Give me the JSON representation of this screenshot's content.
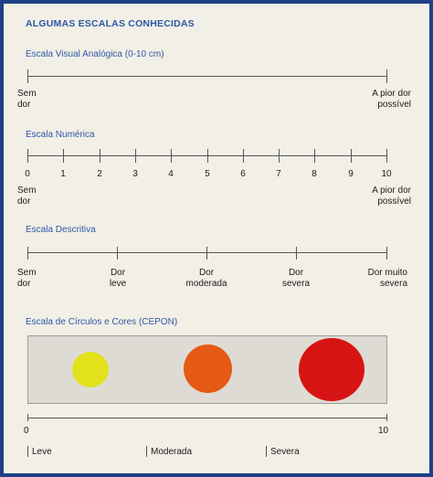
{
  "title": "ALGUMAS ESCALAS CONHECIDAS",
  "visual_scale": {
    "label": "Escala Visual Analógica (0-10 cm)",
    "left": "Sem\ndor",
    "right": "A pior dor\npossível"
  },
  "numeric_scale": {
    "label": "Escala Numérica",
    "ticks": [
      "0",
      "1",
      "2",
      "3",
      "4",
      "5",
      "6",
      "7",
      "8",
      "9",
      "10"
    ],
    "left": "Sem\ndor",
    "right": "A pior dor\npossível"
  },
  "descriptive_scale": {
    "label": "Escala Descritiva",
    "items": [
      "Sem\ndor",
      "Dor\nleve",
      "Dor\nmoderada",
      "Dor\nsevera",
      "Dor muito\nsevera"
    ]
  },
  "circles_scale": {
    "label": "Escala de Círculos e Cores (CEPON)",
    "circles": [
      {
        "color": "#e1e11c",
        "name": "yellow-circle"
      },
      {
        "color": "#e55a14",
        "name": "orange-circle"
      },
      {
        "color": "#d71414",
        "name": "red-circle"
      }
    ],
    "axis_start": "0",
    "axis_end": "10",
    "categories": [
      "Leve",
      "Moderada",
      "Severa"
    ]
  }
}
